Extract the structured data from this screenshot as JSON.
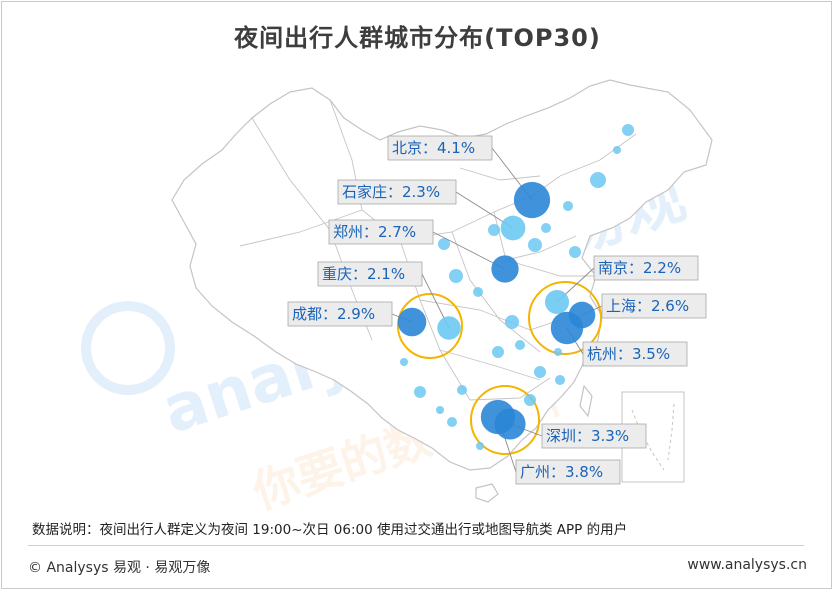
{
  "title": "夜间出行人群城市分布(TOP30)",
  "note": "数据说明：夜间出行人群定义为夜间 19:00~次日 06:00 使用过交通出行或地图导航类 APP 的用户",
  "footer": {
    "left": "© Analysys 易观 · 易观万像",
    "right": "www.analysys.cn"
  },
  "watermark": {
    "brand": "易观",
    "latin": "analysys",
    "slogan": "你要的数据分析"
  },
  "colors": {
    "bubble_major": "#2b86d6",
    "bubble_minor": "#6cc8f2",
    "highlight_ring": "#f4b400",
    "label_text": "#1a63b8",
    "label_bg": "#ececec",
    "map_stroke": "#c4c4c4"
  },
  "chart_data": {
    "type": "scatter",
    "title": "夜间出行人群城市分布(TOP30)",
    "unit": "%",
    "series": [
      {
        "name": "",
        "points": [
          {
            "city": "北京",
            "label": "北京：4.1%",
            "value": 4.1
          },
          {
            "city": "石家庄",
            "label": "石家庄：2.3%",
            "value": 2.3
          },
          {
            "city": "郑州",
            "label": "郑州：2.7%",
            "value": 2.7
          },
          {
            "city": "重庆",
            "label": "重庆：2.1%",
            "value": 2.1
          },
          {
            "city": "成都",
            "label": "成都：2.9%",
            "value": 2.9
          },
          {
            "city": "南京",
            "label": "南京：2.2%",
            "value": 2.2
          },
          {
            "city": "上海",
            "label": "上海：2.6%",
            "value": 2.6
          },
          {
            "city": "杭州",
            "label": "杭州：3.5%",
            "value": 3.5
          },
          {
            "city": "深圳",
            "label": "深圳：3.3%",
            "value": 3.3
          },
          {
            "city": "广州",
            "label": "广州：3.8%",
            "value": 3.8
          }
        ]
      }
    ],
    "highlighted_regions": [
      "成渝",
      "长三角",
      "珠三角"
    ]
  }
}
